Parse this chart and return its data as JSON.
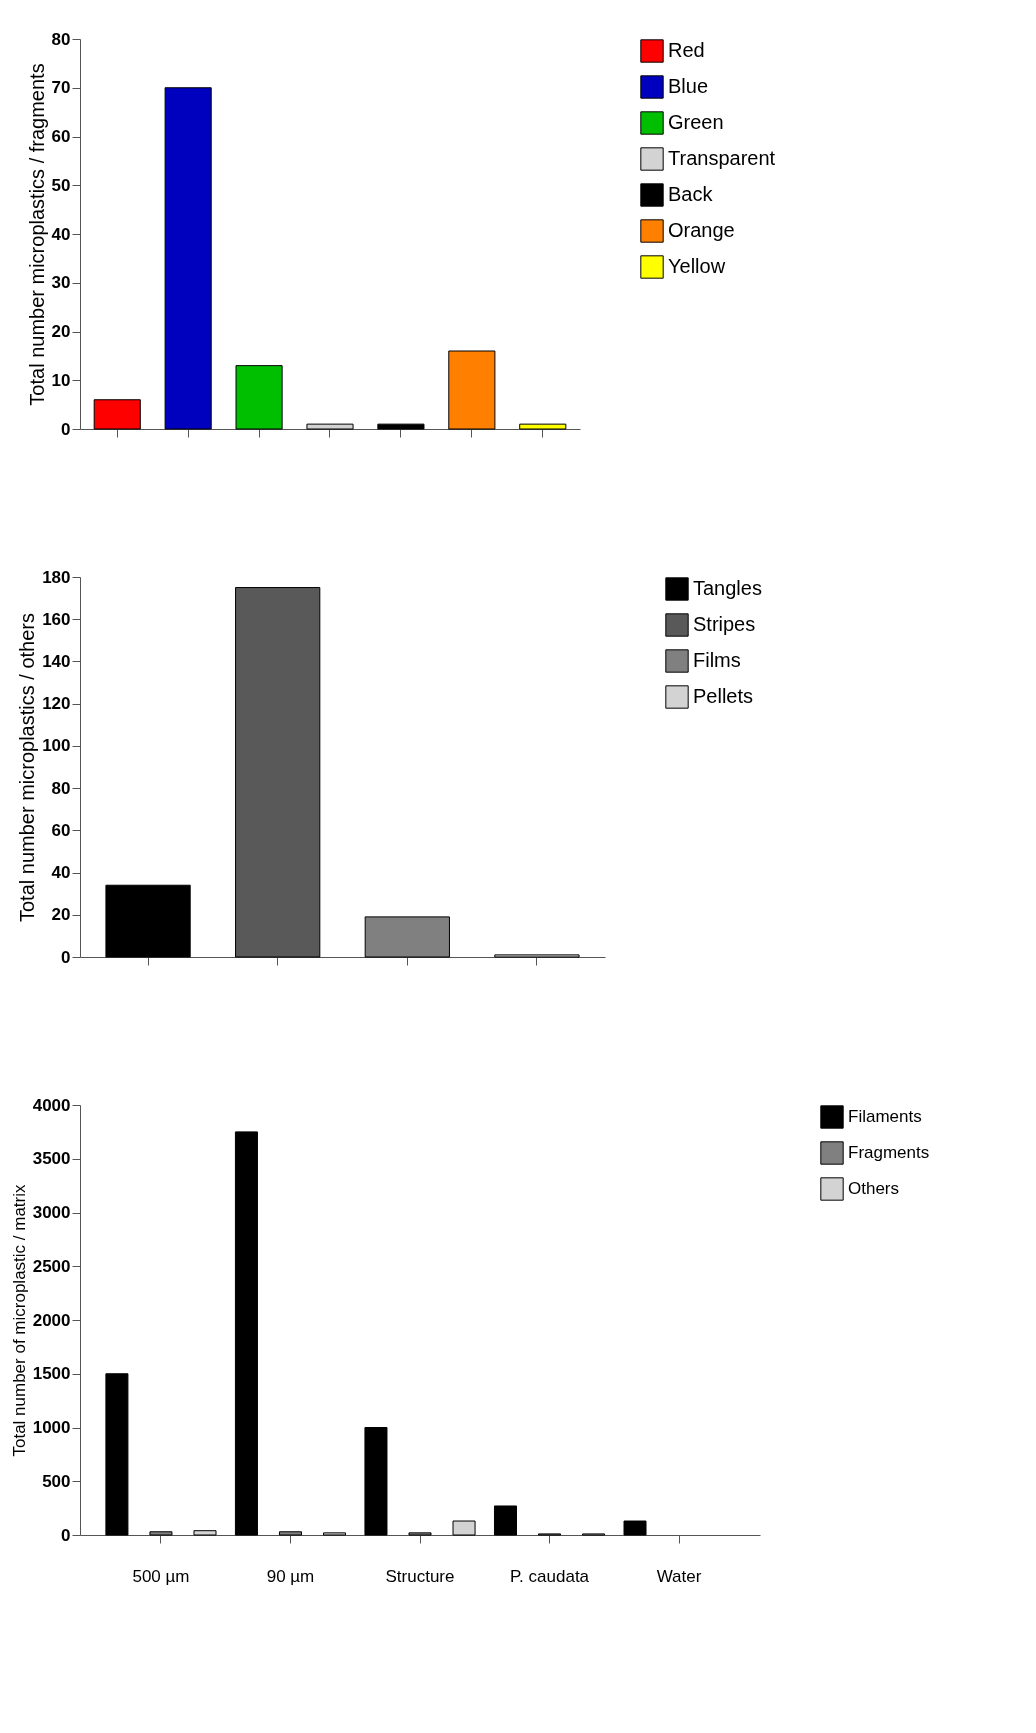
{
  "chart_data": [
    {
      "type": "bar",
      "ylabel": "Total number microplastics / fragments",
      "categories": [
        null,
        null,
        null,
        null,
        null,
        null,
        null
      ],
      "ylim": [
        0,
        80
      ],
      "yticks": [
        0,
        10,
        20,
        30,
        40,
        50,
        60,
        70,
        80
      ],
      "grid": false,
      "legend": "top right",
      "series": [
        {
          "name": "Red",
          "color": "#ff0000",
          "values": [
            6,
            null,
            null,
            null,
            null,
            null,
            null
          ]
        },
        {
          "name": "Blue",
          "color": "#0000bf",
          "values": [
            null,
            70,
            null,
            null,
            null,
            null,
            null
          ]
        },
        {
          "name": "Green",
          "color": "#00bf00",
          "values": [
            null,
            null,
            13,
            null,
            null,
            null,
            null
          ]
        },
        {
          "name": "Transparent",
          "color": "#d3d3d3",
          "values": [
            null,
            null,
            null,
            1,
            null,
            null,
            null
          ]
        },
        {
          "name": "Back",
          "color": "#000000",
          "values": [
            null,
            null,
            null,
            null,
            1,
            null,
            null
          ]
        },
        {
          "name": "Orange",
          "color": "#ff8000",
          "values": [
            null,
            null,
            null,
            null,
            null,
            16,
            null
          ]
        },
        {
          "name": "Yellow",
          "color": "#ffff00",
          "values": [
            null,
            null,
            null,
            null,
            null,
            null,
            1
          ]
        }
      ]
    },
    {
      "type": "bar",
      "ylabel": "Total number microplastics / others",
      "categories": [
        null,
        null,
        null,
        null
      ],
      "ylim": [
        0,
        180
      ],
      "yticks": [
        0,
        20,
        40,
        60,
        80,
        100,
        120,
        140,
        160,
        180
      ],
      "grid": false,
      "legend": "top right",
      "series": [
        {
          "name": "Tangles",
          "color": "#000000",
          "values": [
            34,
            null,
            null,
            null
          ]
        },
        {
          "name": "Stripes",
          "color": "#595959",
          "values": [
            null,
            175,
            null,
            null
          ]
        },
        {
          "name": "Films",
          "color": "#808080",
          "values": [
            null,
            null,
            19,
            null
          ]
        },
        {
          "name": "Pellets",
          "color": "#d3d3d3",
          "values": [
            null,
            null,
            null,
            1
          ]
        }
      ]
    },
    {
      "type": "bar",
      "ylabel": "Total number of microplastic / matrix",
      "categories": [
        "500 µm",
        "90 µm",
        "Structure",
        "P. caudata",
        "Water"
      ],
      "ylim": [
        0,
        4000
      ],
      "yticks": [
        0,
        500,
        1000,
        1500,
        2000,
        2500,
        3000,
        3500,
        4000
      ],
      "grid": false,
      "legend": "top right",
      "series": [
        {
          "name": "Filaments",
          "color": "#000000",
          "values": [
            1500,
            3750,
            1000,
            270,
            130
          ]
        },
        {
          "name": "Fragments",
          "color": "#808080",
          "values": [
            30,
            30,
            20,
            10,
            null
          ]
        },
        {
          "name": "Others",
          "color": "#d3d3d3",
          "values": [
            40,
            20,
            130,
            10,
            null
          ]
        }
      ]
    }
  ]
}
